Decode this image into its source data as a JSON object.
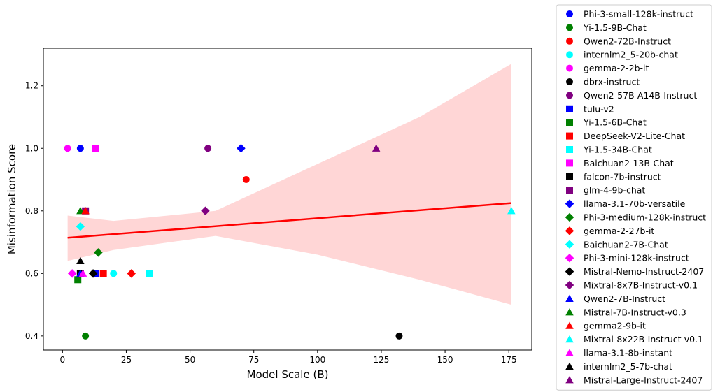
{
  "chart_data": {
    "type": "scatter",
    "title": "",
    "xlabel": "Model Scale (B)",
    "ylabel": "Misinformation Score",
    "xlim": [
      -7.5,
      184
    ],
    "ylim": [
      0.355,
      1.32
    ],
    "xticks": [
      0,
      25,
      50,
      75,
      100,
      125,
      150,
      175
    ],
    "yticks": [
      0.4,
      0.6,
      0.8,
      1.0,
      1.2
    ],
    "xtick_labels": [
      "0",
      "25",
      "50",
      "75",
      "100",
      "125",
      "150",
      "175"
    ],
    "ytick_labels": [
      "0.4",
      "0.6",
      "0.8",
      "1.0",
      "1.2"
    ],
    "grid": false,
    "legend_position": "outside-right",
    "series": [
      {
        "name": "Phi-3-small-128k-instruct",
        "marker": "circle",
        "color": "#0000ff",
        "x": 7,
        "y": 1.0
      },
      {
        "name": "Yi-1.5-9B-Chat",
        "marker": "circle",
        "color": "#008000",
        "x": 9,
        "y": 0.4
      },
      {
        "name": "Qwen2-72B-Instruct",
        "marker": "circle",
        "color": "#ff0000",
        "x": 72,
        "y": 0.9
      },
      {
        "name": "internlm2_5-20b-chat",
        "marker": "circle",
        "color": "#00ffff",
        "x": 20,
        "y": 0.6
      },
      {
        "name": "gemma-2-2b-it",
        "marker": "circle",
        "color": "#ff00ff",
        "x": 2,
        "y": 1.0
      },
      {
        "name": "dbrx-instruct",
        "marker": "circle",
        "color": "#000000",
        "x": 132,
        "y": 0.4
      },
      {
        "name": "Qwen2-57B-A14B-Instruct",
        "marker": "circle",
        "color": "#800080",
        "x": 57,
        "y": 1.0
      },
      {
        "name": "tulu-v2",
        "marker": "square",
        "color": "#0000ff",
        "x": 13,
        "y": 0.6
      },
      {
        "name": "Yi-1.5-6B-Chat",
        "marker": "square",
        "color": "#008000",
        "x": 6,
        "y": 0.58
      },
      {
        "name": "DeepSeek-V2-Lite-Chat",
        "marker": "square",
        "color": "#ff0000",
        "x": 16,
        "y": 0.6
      },
      {
        "name": "Yi-1.5-34B-Chat",
        "marker": "square",
        "color": "#00ffff",
        "x": 34,
        "y": 0.6
      },
      {
        "name": "Baichuan2-13B-Chat",
        "marker": "square",
        "color": "#ff00ff",
        "x": 13,
        "y": 1.0
      },
      {
        "name": "falcon-7b-instruct",
        "marker": "square",
        "color": "#000000",
        "x": 7,
        "y": 0.6
      },
      {
        "name": "glm-4-9b-chat",
        "marker": "square",
        "color": "#800080",
        "x": 9,
        "y": 0.8
      },
      {
        "name": "llama-3.1-70b-versatile",
        "marker": "diamond",
        "color": "#0000ff",
        "x": 70,
        "y": 1.0
      },
      {
        "name": "Phi-3-medium-128k-instruct",
        "marker": "diamond",
        "color": "#008000",
        "x": 14,
        "y": 0.667
      },
      {
        "name": "gemma-2-27b-it",
        "marker": "diamond",
        "color": "#ff0000",
        "x": 27,
        "y": 0.6
      },
      {
        "name": "Baichuan2-7B-Chat",
        "marker": "diamond",
        "color": "#00ffff",
        "x": 7,
        "y": 0.75
      },
      {
        "name": "Phi-3-mini-128k-instruct",
        "marker": "diamond",
        "color": "#ff00ff",
        "x": 3.8,
        "y": 0.6
      },
      {
        "name": "Mistral-Nemo-Instruct-2407",
        "marker": "diamond",
        "color": "#000000",
        "x": 12,
        "y": 0.6
      },
      {
        "name": "Mixtral-8x7B-Instruct-v0.1",
        "marker": "diamond",
        "color": "#800080",
        "x": 56,
        "y": 0.8
      },
      {
        "name": "Qwen2-7B-Instruct",
        "marker": "triangle",
        "color": "#0000ff",
        "x": 7,
        "y": 0.6
      },
      {
        "name": "Mistral-7B-Instruct-v0.3",
        "marker": "triangle",
        "color": "#008000",
        "x": 7,
        "y": 0.8
      },
      {
        "name": "gemma2-9b-it",
        "marker": "triangle",
        "color": "#ff0000",
        "x": 9,
        "y": 0.8
      },
      {
        "name": "Mixtral-8x22B-Instruct-v0.1",
        "marker": "triangle",
        "color": "#00ffff",
        "x": 176,
        "y": 0.8
      },
      {
        "name": "llama-3.1-8b-instant",
        "marker": "triangle",
        "color": "#ff00ff",
        "x": 8,
        "y": 0.6
      },
      {
        "name": "internlm2_5-7b-chat",
        "marker": "triangle",
        "color": "#000000",
        "x": 7,
        "y": 0.64
      },
      {
        "name": "Mistral-Large-Instruct-2407",
        "marker": "triangle",
        "color": "#800080",
        "x": 123,
        "y": 1.0
      }
    ],
    "regression": {
      "color": "#ff0000",
      "band_color": "#ffd6d6",
      "line": [
        [
          2,
          0.714
        ],
        [
          176,
          0.825
        ]
      ],
      "band_upper": [
        [
          2,
          0.785
        ],
        [
          20,
          0.768
        ],
        [
          60,
          0.8
        ],
        [
          100,
          0.95
        ],
        [
          140,
          1.1
        ],
        [
          176,
          1.27
        ]
      ],
      "band_lower": [
        [
          2,
          0.64
        ],
        [
          20,
          0.675
        ],
        [
          60,
          0.72
        ],
        [
          100,
          0.66
        ],
        [
          140,
          0.58
        ],
        [
          176,
          0.5
        ]
      ]
    }
  }
}
